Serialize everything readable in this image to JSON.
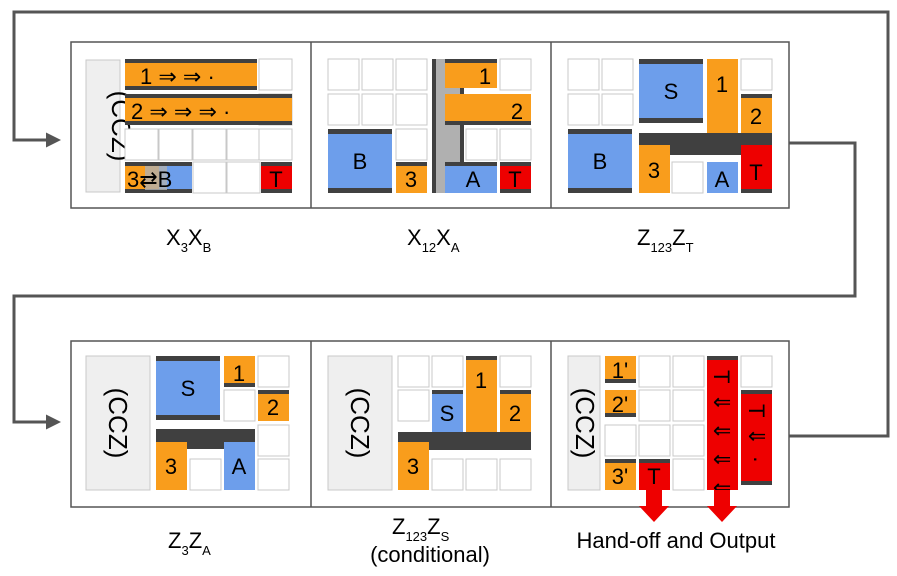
{
  "colors": {
    "orange": "#f99d1c",
    "blue": "#6d9eeb",
    "red": "#ee0000",
    "dark": "#404040",
    "gray": "#b0b0b0",
    "cellBorder": "#c8c8c8",
    "arrow": "#555555",
    "panelBorder": "#555555",
    "cczBg": "#efefef"
  },
  "ccz_label": "(CCZ)",
  "row1": [
    {
      "main": "X",
      "sub1": "3",
      "main2": "X",
      "sub2": "B"
    },
    {
      "main": "X",
      "sub1": "12",
      "main2": "X",
      "sub2": "A"
    },
    {
      "main": "Z",
      "sub1": "123",
      "main2": "Z",
      "sub2": "T"
    }
  ],
  "row2": [
    {
      "main": "Z",
      "sub1": "3",
      "main2": "Z",
      "sub2": "A"
    },
    {
      "main": "Z",
      "sub1": "123",
      "main2": "Z",
      "sub2": "S",
      "note": "(conditional)"
    },
    {
      "caption": "Hand-off and Output"
    }
  ],
  "panel1": {
    "bar1": "1 ⇒  ⇒ ·",
    "bar2": "2 ⇒  ⇒  ⇒ ·",
    "swap": "3⇄B",
    "t": "T"
  },
  "panel2": {
    "q1": "1",
    "q2": "2",
    "b": "B",
    "q3": "3",
    "a": "A",
    "t": "T"
  },
  "panel3": {
    "s": "S",
    "q1": "1",
    "q2": "2",
    "b": "B",
    "q3": "3",
    "a": "A",
    "t": "T"
  },
  "panel4": {
    "s": "S",
    "q1": "1",
    "q2": "2",
    "q3": "3",
    "a": "A"
  },
  "panel5": {
    "s": "S",
    "q1": "1",
    "q2": "2",
    "q3": "3"
  },
  "panel6": {
    "q1p": "1'",
    "q2p": "2'",
    "q3p": "3'",
    "t1": "T",
    "t2": "T ⇓ ⇓ ⇓ ⇓",
    "t3": "T ⇓ ·"
  }
}
